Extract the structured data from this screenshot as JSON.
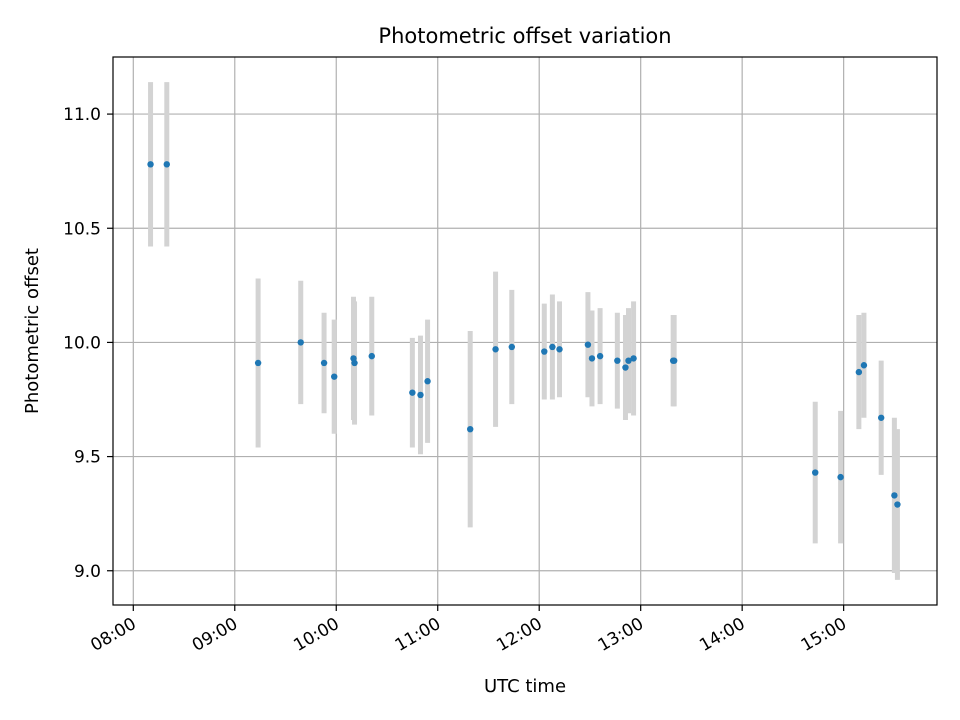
{
  "chart_data": {
    "type": "scatter",
    "title": "Photometric offset variation",
    "xlabel": "UTC time",
    "ylabel": "Photometric offset",
    "grid": true,
    "x_unit": "hours",
    "xlim": [
      7.8,
      15.92
    ],
    "ylim": [
      8.85,
      11.25
    ],
    "x_ticks": [
      {
        "value": 8,
        "label": "08:00"
      },
      {
        "value": 9,
        "label": "09:00"
      },
      {
        "value": 10,
        "label": "10:00"
      },
      {
        "value": 11,
        "label": "11:00"
      },
      {
        "value": 12,
        "label": "12:00"
      },
      {
        "value": 13,
        "label": "13:00"
      },
      {
        "value": 14,
        "label": "14:00"
      },
      {
        "value": 15,
        "label": "15:00"
      }
    ],
    "y_ticks": [
      {
        "value": 9.0,
        "label": "9.0"
      },
      {
        "value": 9.5,
        "label": "9.5"
      },
      {
        "value": 10.0,
        "label": "10.0"
      },
      {
        "value": 10.5,
        "label": "10.5"
      },
      {
        "value": 11.0,
        "label": "11.0"
      }
    ],
    "point_color": "#1f77b4",
    "errorbar_color": "#d3d3d3",
    "points": [
      {
        "x": 8.17,
        "y": 10.78,
        "err": 0.36
      },
      {
        "x": 8.33,
        "y": 10.78,
        "err": 0.36
      },
      {
        "x": 9.23,
        "y": 9.91,
        "err": 0.37
      },
      {
        "x": 9.65,
        "y": 10.0,
        "err": 0.27
      },
      {
        "x": 9.88,
        "y": 9.91,
        "err": 0.22
      },
      {
        "x": 9.98,
        "y": 9.85,
        "err": 0.25
      },
      {
        "x": 10.17,
        "y": 9.93,
        "err": 0.27
      },
      {
        "x": 10.18,
        "y": 9.91,
        "err": 0.27
      },
      {
        "x": 10.35,
        "y": 9.94,
        "err": 0.26
      },
      {
        "x": 10.75,
        "y": 9.78,
        "err": 0.24
      },
      {
        "x": 10.83,
        "y": 9.77,
        "err": 0.26
      },
      {
        "x": 10.9,
        "y": 9.83,
        "err": 0.27
      },
      {
        "x": 11.32,
        "y": 9.62,
        "err": 0.43
      },
      {
        "x": 11.57,
        "y": 9.97,
        "err": 0.34
      },
      {
        "x": 11.73,
        "y": 9.98,
        "err": 0.25
      },
      {
        "x": 12.05,
        "y": 9.96,
        "err": 0.21
      },
      {
        "x": 12.13,
        "y": 9.98,
        "err": 0.23
      },
      {
        "x": 12.2,
        "y": 9.97,
        "err": 0.21
      },
      {
        "x": 12.48,
        "y": 9.99,
        "err": 0.23
      },
      {
        "x": 12.52,
        "y": 9.93,
        "err": 0.21
      },
      {
        "x": 12.6,
        "y": 9.94,
        "err": 0.21
      },
      {
        "x": 12.77,
        "y": 9.92,
        "err": 0.21
      },
      {
        "x": 12.85,
        "y": 9.89,
        "err": 0.23
      },
      {
        "x": 12.88,
        "y": 9.92,
        "err": 0.23
      },
      {
        "x": 12.93,
        "y": 9.93,
        "err": 0.25
      },
      {
        "x": 13.32,
        "y": 9.92,
        "err": 0.2
      },
      {
        "x": 13.33,
        "y": 9.92,
        "err": 0.2
      },
      {
        "x": 14.72,
        "y": 9.43,
        "err": 0.31
      },
      {
        "x": 14.97,
        "y": 9.41,
        "err": 0.29
      },
      {
        "x": 15.15,
        "y": 9.87,
        "err": 0.25
      },
      {
        "x": 15.2,
        "y": 9.9,
        "err": 0.23
      },
      {
        "x": 15.37,
        "y": 9.67,
        "err": 0.25
      },
      {
        "x": 15.5,
        "y": 9.33,
        "err": 0.34
      },
      {
        "x": 15.53,
        "y": 9.29,
        "err": 0.33
      }
    ]
  }
}
